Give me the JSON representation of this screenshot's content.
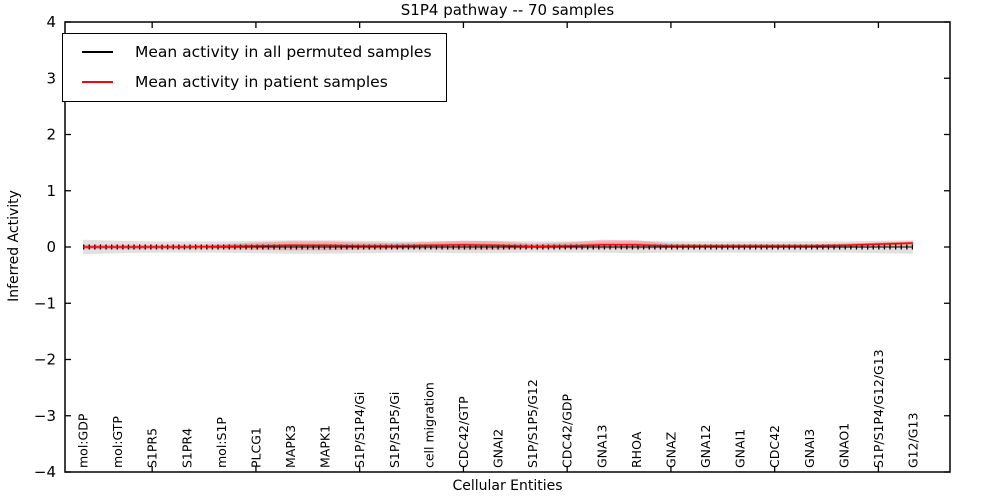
{
  "figure": {
    "title": "S1P4 pathway -- 70 samples",
    "xlabel": "Cellular Entities",
    "ylabel": "Inferred Activity"
  },
  "legend": {
    "items": [
      {
        "label": "Mean activity in all permuted samples",
        "color": "#000000"
      },
      {
        "label": "Mean activity in patient samples",
        "color": "#ff0000"
      }
    ]
  },
  "chart_data": {
    "type": "line",
    "title": "S1P4 pathway -- 70 samples",
    "xlabel": "Cellular Entities",
    "ylabel": "Inferred Activity",
    "ylim": [
      -4,
      4
    ],
    "yticks": [
      4,
      3,
      2,
      1,
      0,
      -1,
      -2,
      -3,
      -4
    ],
    "grid": false,
    "legend_position": "upper left",
    "categories": [
      "mol:GDP",
      "mol:GTP",
      "S1PR5",
      "S1PR4",
      "mol:S1P",
      "PLCG1",
      "MAPK3",
      "MAPK1",
      "S1P/S1P4/Gi",
      "S1P/S1P5/Gi",
      "cell migration",
      "CDC42/GTP",
      "GNAI2",
      "S1P/S1P5/G12",
      "CDC42/GDP",
      "GNA13",
      "RHOA",
      "GNAZ",
      "GNA12",
      "GNAI1",
      "CDC42",
      "GNAI3",
      "GNAO1",
      "S1P/S1P4/G12/G13",
      "G12/G13"
    ],
    "series": [
      {
        "name": "Mean activity in all permuted samples",
        "color": "#000000",
        "marker": "|",
        "values": [
          0,
          0,
          0,
          0,
          0,
          0,
          0,
          0,
          0,
          0,
          0,
          0,
          0,
          0,
          0,
          0,
          0,
          0,
          0,
          0,
          0,
          0,
          0,
          0,
          0
        ],
        "band_color": "#c8c8c8",
        "band_upper": [
          0.13,
          0.11,
          0.1,
          0.1,
          0.1,
          0.11,
          0.12,
          0.12,
          0.11,
          0.1,
          0.1,
          0.11,
          0.11,
          0.1,
          0.1,
          0.1,
          0.11,
          0.1,
          0.1,
          0.1,
          0.1,
          0.1,
          0.1,
          0.11,
          0.12
        ],
        "band_lower": [
          -0.13,
          -0.11,
          -0.1,
          -0.1,
          -0.1,
          -0.11,
          -0.12,
          -0.12,
          -0.11,
          -0.1,
          -0.1,
          -0.11,
          -0.11,
          -0.1,
          -0.1,
          -0.1,
          -0.11,
          -0.1,
          -0.1,
          -0.1,
          -0.1,
          -0.1,
          -0.1,
          -0.11,
          -0.12
        ]
      },
      {
        "name": "Mean activity in patient samples",
        "color": "#ff0000",
        "marker": "none",
        "values": [
          0,
          0,
          0,
          0,
          0.01,
          0.02,
          0.03,
          0.03,
          0.02,
          0.02,
          0.03,
          0.04,
          0.03,
          0.01,
          0.02,
          0.04,
          0.04,
          0.02,
          0.02,
          0.02,
          0.02,
          0.02,
          0.03,
          0.05,
          0.07
        ],
        "band_color": "#f06060",
        "band_inner_halfwidth": 0.025,
        "band_upper": [
          0.04,
          0.04,
          0.04,
          0.04,
          0.05,
          0.08,
          0.1,
          0.1,
          0.08,
          0.07,
          0.09,
          0.11,
          0.1,
          0.06,
          0.08,
          0.13,
          0.12,
          0.06,
          0.05,
          0.05,
          0.05,
          0.05,
          0.06,
          0.08,
          0.1
        ],
        "band_lower": [
          -0.04,
          -0.04,
          -0.04,
          -0.04,
          -0.04,
          -0.05,
          -0.06,
          -0.06,
          -0.05,
          -0.04,
          -0.04,
          -0.05,
          -0.05,
          -0.03,
          -0.03,
          -0.03,
          -0.03,
          -0.02,
          -0.02,
          -0.02,
          -0.02,
          -0.02,
          -0.02,
          -0.01,
          0.02
        ]
      }
    ]
  }
}
